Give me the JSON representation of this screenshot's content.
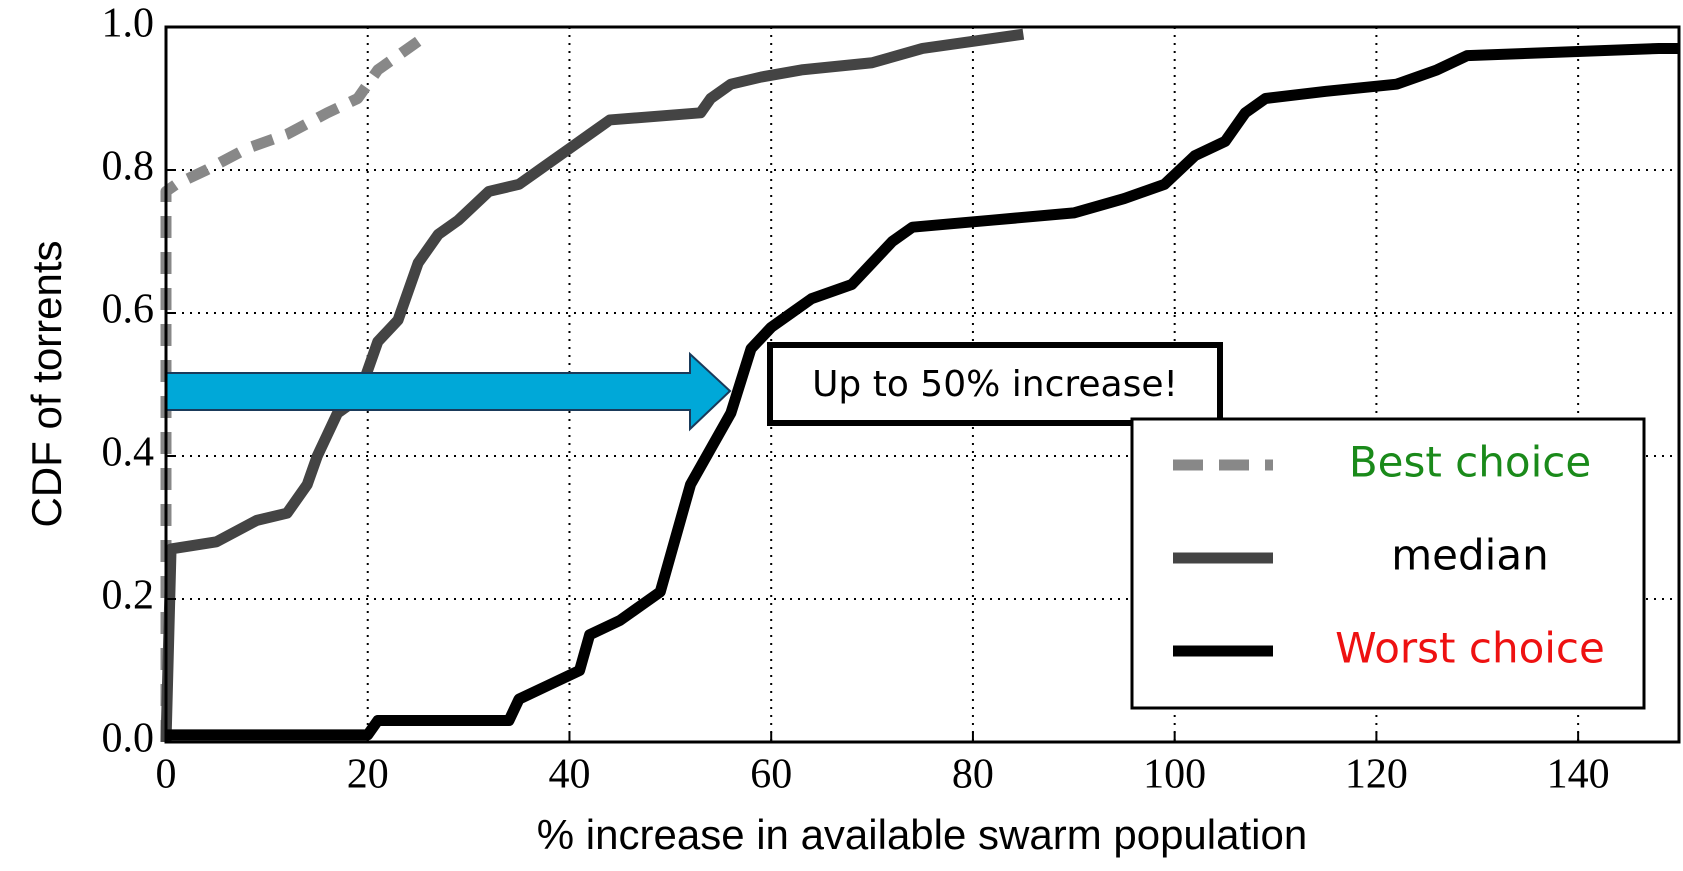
{
  "chart_data": {
    "type": "line",
    "x_label": "% increase in available swarm population",
    "y_label": "CDF of torrents",
    "xlim": [
      0,
      150
    ],
    "ylim": [
      0,
      1
    ],
    "xticks": [
      0,
      20,
      40,
      60,
      80,
      100,
      120,
      140
    ],
    "yticks": [
      {
        "value": 0,
        "label": "0.0"
      },
      0.2,
      0.4,
      0.6,
      0.8,
      {
        "value": 1,
        "label": "1.0"
      }
    ],
    "grid": true,
    "legend_position": "lower right",
    "annotation": "Up to 50% increase!",
    "series": [
      {
        "name": "Best choice",
        "color": "#888888",
        "legend_text_color": "#1a8a1a",
        "dashed": true,
        "x": [
          0,
          0,
          1,
          4,
          8,
          12,
          16,
          19,
          21,
          23,
          25
        ],
        "values": [
          0,
          0.77,
          0.78,
          0.8,
          0.83,
          0.85,
          0.88,
          0.9,
          0.94,
          0.96,
          0.98
        ]
      },
      {
        "name": "median",
        "color": "#444444",
        "legend_text_color": "#000000",
        "dashed": false,
        "x": [
          0,
          0.5,
          5,
          9,
          12,
          14,
          15,
          16,
          17,
          19,
          20,
          21,
          23,
          24,
          25,
          27,
          29,
          32,
          35,
          37,
          40,
          42,
          44,
          53,
          54,
          56,
          59,
          63,
          70,
          75,
          80,
          85
        ],
        "values": [
          0,
          0.27,
          0.28,
          0.31,
          0.32,
          0.36,
          0.4,
          0.43,
          0.46,
          0.48,
          0.52,
          0.56,
          0.59,
          0.63,
          0.67,
          0.71,
          0.73,
          0.77,
          0.78,
          0.8,
          0.83,
          0.85,
          0.87,
          0.88,
          0.9,
          0.92,
          0.93,
          0.94,
          0.95,
          0.97,
          0.98,
          0.99
        ]
      },
      {
        "name": "Worst choice",
        "color": "#000000",
        "legend_text_color": "#ee1111",
        "dashed": false,
        "x": [
          0,
          20,
          21,
          34,
          35,
          38,
          41,
          42,
          45,
          47,
          49,
          50,
          51,
          52,
          54,
          56,
          58,
          60,
          62,
          64,
          68,
          70,
          72,
          74,
          82,
          90,
          95,
          99,
          102,
          105,
          107,
          109,
          115,
          122,
          126,
          129,
          148,
          150
        ],
        "values": [
          0.01,
          0.01,
          0.03,
          0.03,
          0.06,
          0.08,
          0.1,
          0.15,
          0.17,
          0.19,
          0.21,
          0.26,
          0.31,
          0.36,
          0.41,
          0.46,
          0.55,
          0.58,
          0.6,
          0.62,
          0.64,
          0.67,
          0.7,
          0.72,
          0.73,
          0.74,
          0.76,
          0.78,
          0.82,
          0.84,
          0.88,
          0.9,
          0.91,
          0.92,
          0.94,
          0.96,
          0.97,
          0.97
        ]
      }
    ]
  }
}
